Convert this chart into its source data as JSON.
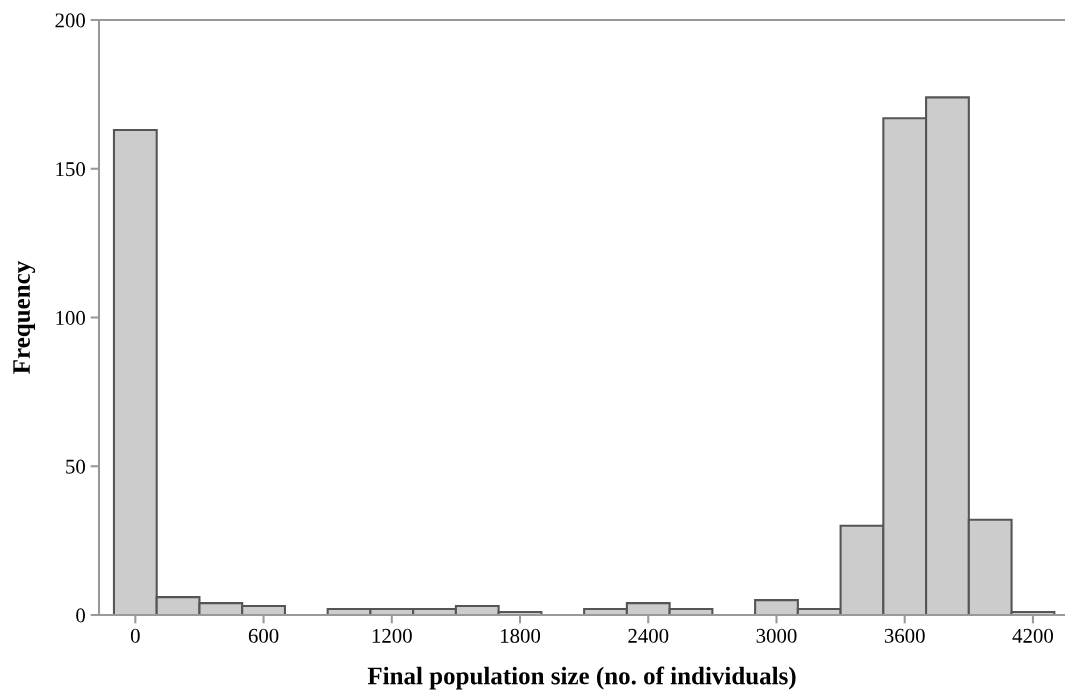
{
  "chart_data": {
    "type": "histogram",
    "xlabel": "Final population size (no. of individuals)",
    "ylabel": "Frequency",
    "bins": [
      -100,
      100,
      300,
      500,
      700,
      900,
      1100,
      1300,
      1500,
      1700,
      1900,
      2100,
      2300,
      2500,
      2700,
      2900,
      3100,
      3300,
      3500,
      3700,
      3900,
      4100,
      4300
    ],
    "values": [
      163,
      6,
      4,
      3,
      0,
      2,
      2,
      2,
      3,
      1,
      0,
      2,
      4,
      2,
      0,
      5,
      2,
      30,
      167,
      174,
      32,
      1
    ],
    "color": "#cccccc",
    "xlim": [
      -170,
      4350
    ],
    "xticks": [
      0,
      600,
      1200,
      1800,
      2400,
      3000,
      3600,
      4200
    ],
    "ylim": [
      0,
      200
    ],
    "yticks": [
      0,
      50,
      100,
      150,
      200
    ],
    "grid": false
  }
}
